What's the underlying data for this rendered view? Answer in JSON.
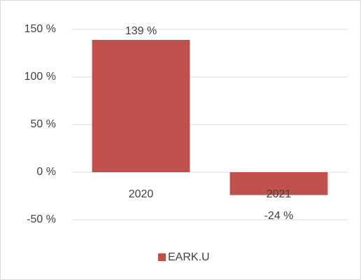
{
  "chart_data": {
    "type": "bar",
    "categories": [
      "2020",
      "2021"
    ],
    "series": [
      {
        "name": "EARK.U",
        "color": "#c0504d",
        "values": [
          139,
          -24
        ],
        "value_labels": [
          "139 %",
          "-24 %"
        ]
      }
    ],
    "ylim": [
      -50,
      150
    ],
    "yticks": [
      {
        "value": -50,
        "label": "-50 %"
      },
      {
        "value": 0,
        "label": "0 %"
      },
      {
        "value": 50,
        "label": "50 %"
      },
      {
        "value": 100,
        "label": "100 %"
      },
      {
        "value": 150,
        "label": "150 %"
      }
    ],
    "grid": true,
    "legend": "bottom"
  }
}
